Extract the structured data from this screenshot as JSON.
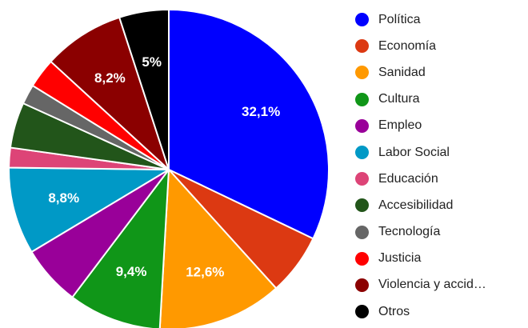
{
  "chart_data": {
    "type": "pie",
    "title": "",
    "start_angle_deg": 0,
    "direction": "clockwise",
    "legend_position": "right",
    "slices": [
      {
        "label": "Política",
        "value": 32.1,
        "color": "#0000ff",
        "value_label": "32,1%"
      },
      {
        "label": "Economía",
        "value": 6.2,
        "color": "#dc3912",
        "value_label": ""
      },
      {
        "label": "Sanidad",
        "value": 12.6,
        "color": "#ff9900",
        "value_label": "12,6%"
      },
      {
        "label": "Cultura",
        "value": 9.4,
        "color": "#109618",
        "value_label": "9,4%"
      },
      {
        "label": "Empleo",
        "value": 6.1,
        "color": "#990099",
        "value_label": ""
      },
      {
        "label": "Labor Social",
        "value": 8.8,
        "color": "#0099c6",
        "value_label": "8,8%"
      },
      {
        "label": "Educación",
        "value": 2.0,
        "color": "#dd4477",
        "value_label": ""
      },
      {
        "label": "Accesibilidad",
        "value": 4.6,
        "color": "#22551a",
        "value_label": ""
      },
      {
        "label": "Tecnología",
        "value": 2.0,
        "color": "#666666",
        "value_label": ""
      },
      {
        "label": "Justicia",
        "value": 3.0,
        "color": "#ff0000",
        "value_label": ""
      },
      {
        "label": "Violencia y accid…",
        "value": 8.2,
        "color": "#8b0000",
        "value_label": "8,2%"
      },
      {
        "label": "Otros",
        "value": 5.0,
        "color": "#000000",
        "value_label": "5%"
      }
    ]
  }
}
